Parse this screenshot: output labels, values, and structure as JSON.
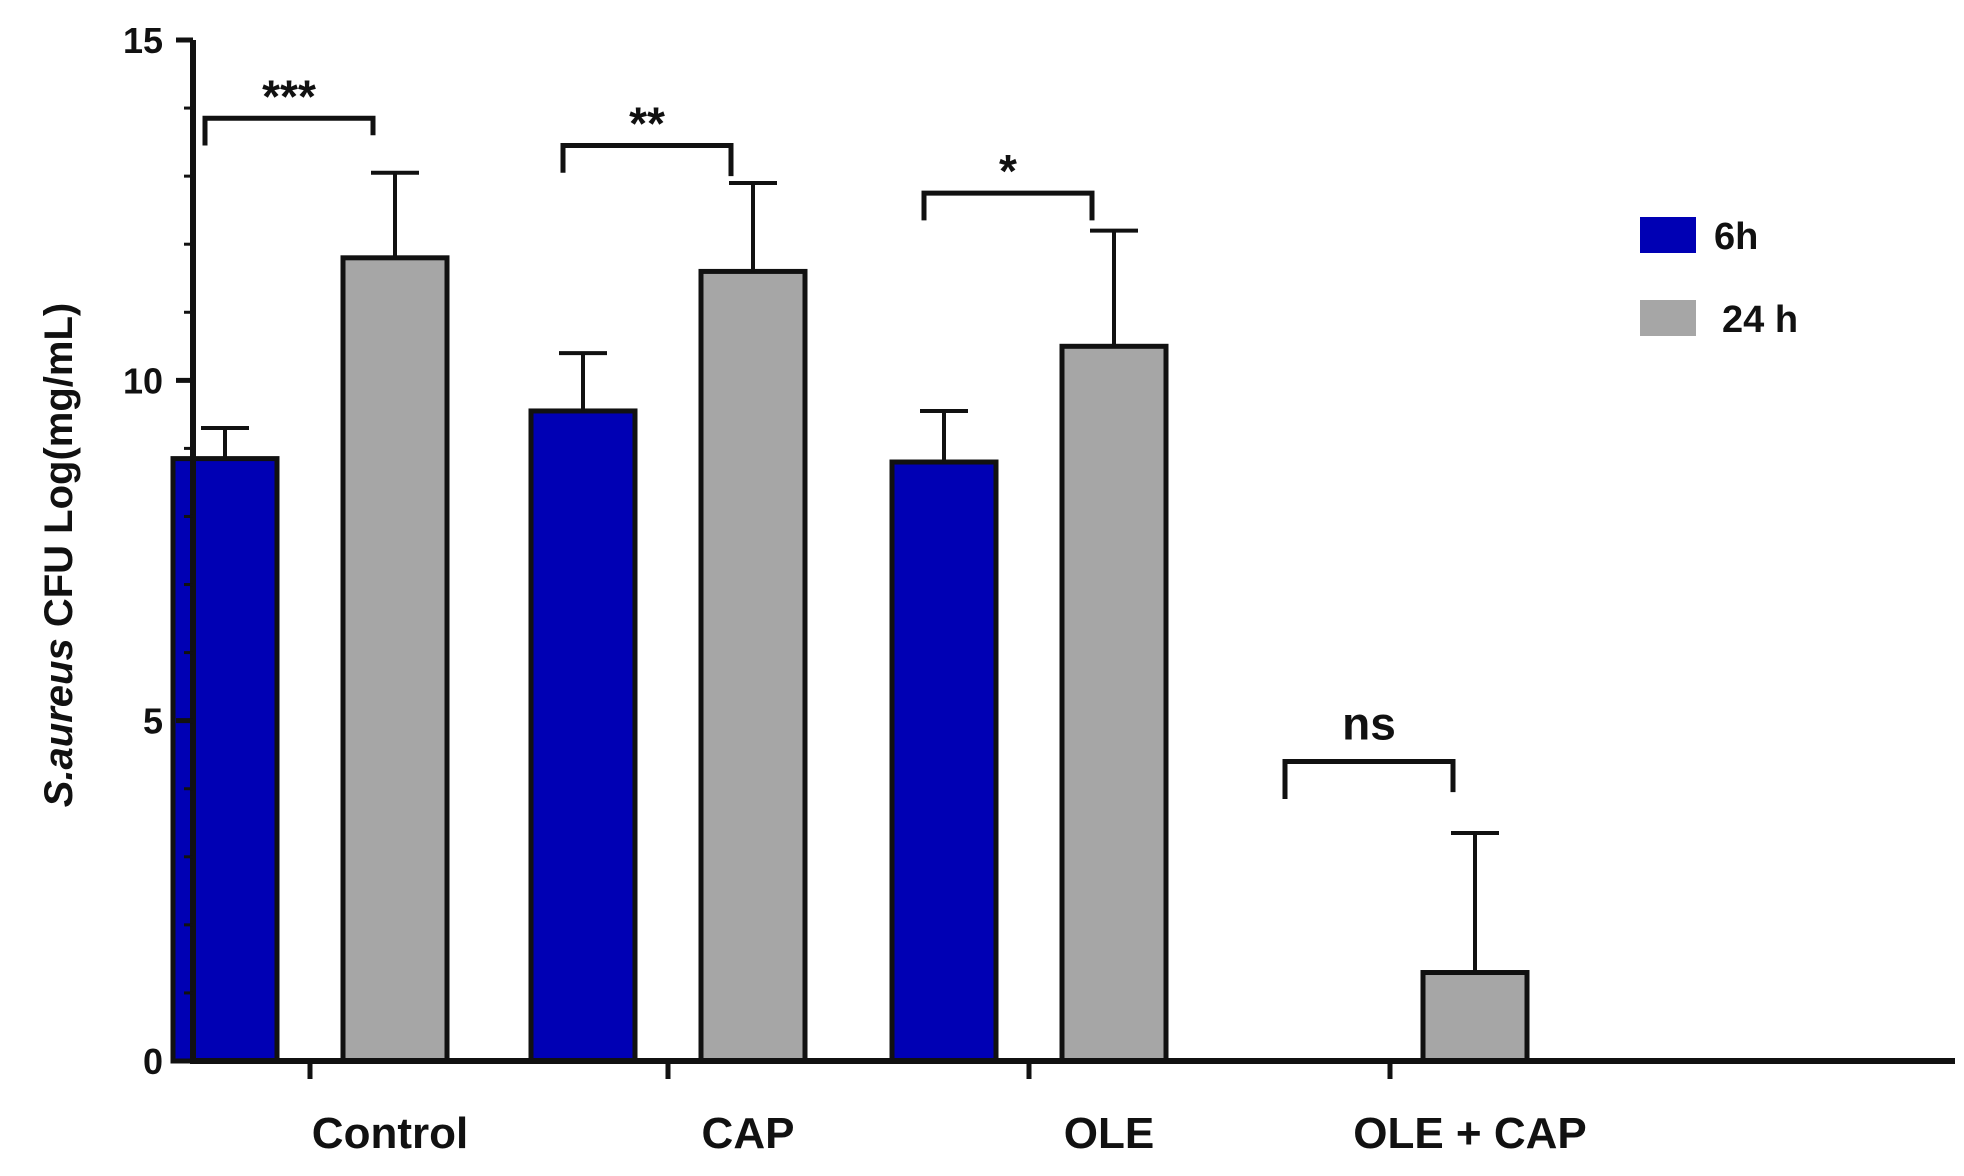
{
  "chart_data": {
    "type": "bar",
    "title": "",
    "xlabel": "",
    "ylabel": {
      "italic": "S.aureus",
      "rest": " CFU Log(mg/mL)"
    },
    "ylim": [
      0,
      15
    ],
    "yticks": [
      0,
      5,
      10,
      15
    ],
    "grid": false,
    "legend_position": "top-right",
    "categories": [
      "Control",
      "CAP",
      "OLE",
      "OLE + CAP"
    ],
    "series": [
      {
        "name": "6h",
        "color": "#0000b4",
        "values": [
          8.85,
          9.55,
          8.8,
          0
        ],
        "errors": [
          0.45,
          0.85,
          0.75,
          0
        ]
      },
      {
        "name": "24 h",
        "color": "#a6a6a6",
        "values": [
          11.8,
          11.6,
          10.5,
          1.3
        ],
        "errors": [
          1.25,
          1.3,
          1.7,
          2.05
        ]
      }
    ],
    "significance": [
      {
        "label": "***",
        "y": 13.85,
        "y_left_end": 13.45,
        "y_right_end": 13.6
      },
      {
        "label": "**",
        "y": 13.45,
        "y_left_end": 13.05,
        "y_right_end": 13.0
      },
      {
        "label": "*",
        "y": 12.75,
        "y_left_end": 12.35,
        "y_right_end": 12.35
      },
      {
        "label": "ns",
        "y": 4.4,
        "y_left_end": 3.85,
        "y_right_end": 3.95
      }
    ]
  }
}
